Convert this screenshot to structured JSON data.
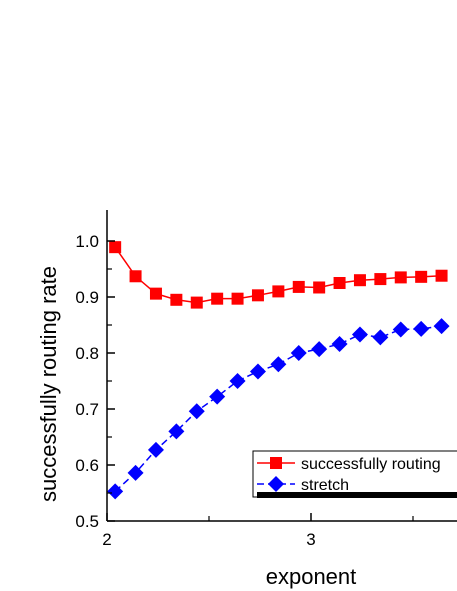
{
  "chart_data": {
    "type": "line",
    "title": "",
    "xlabel": "exponent",
    "ylabel": "successfully routing rate",
    "xlim": [
      2.0,
      3.7
    ],
    "ylim": [
      0.5,
      1.05
    ],
    "xticks": [
      2,
      3
    ],
    "xtick_labels": [
      "2",
      "3"
    ],
    "yticks": [
      0.5,
      0.6,
      0.7,
      0.8,
      0.9,
      1.0
    ],
    "ytick_labels": [
      "0.5",
      "0.6",
      "0.7",
      "0.8",
      "0.9",
      "1.0"
    ],
    "grid": false,
    "legend_position": "bottom-right",
    "series": [
      {
        "name": "successfully routing",
        "color": "#ff0000",
        "marker": "square",
        "line_style": "solid",
        "x": [
          2.04,
          2.14,
          2.24,
          2.34,
          2.44,
          2.54,
          2.64,
          2.74,
          2.84,
          2.94,
          3.04,
          3.14,
          3.24,
          3.34,
          3.44,
          3.54,
          3.64
        ],
        "y": [
          0.989,
          0.937,
          0.906,
          0.895,
          0.89,
          0.897,
          0.897,
          0.903,
          0.91,
          0.918,
          0.917,
          0.925,
          0.93,
          0.932,
          0.935,
          0.936,
          0.938
        ]
      },
      {
        "name": "stretch",
        "color": "#0000ff",
        "marker": "diamond",
        "line_style": "dashed",
        "x": [
          2.04,
          2.14,
          2.24,
          2.34,
          2.44,
          2.54,
          2.64,
          2.74,
          2.84,
          2.94,
          3.04,
          3.14,
          3.24,
          3.34,
          3.44,
          3.54,
          3.64
        ],
        "y": [
          0.553,
          0.586,
          0.627,
          0.66,
          0.696,
          0.722,
          0.75,
          0.767,
          0.78,
          0.8,
          0.807,
          0.816,
          0.833,
          0.828,
          0.842,
          0.843,
          0.848
        ]
      }
    ]
  }
}
